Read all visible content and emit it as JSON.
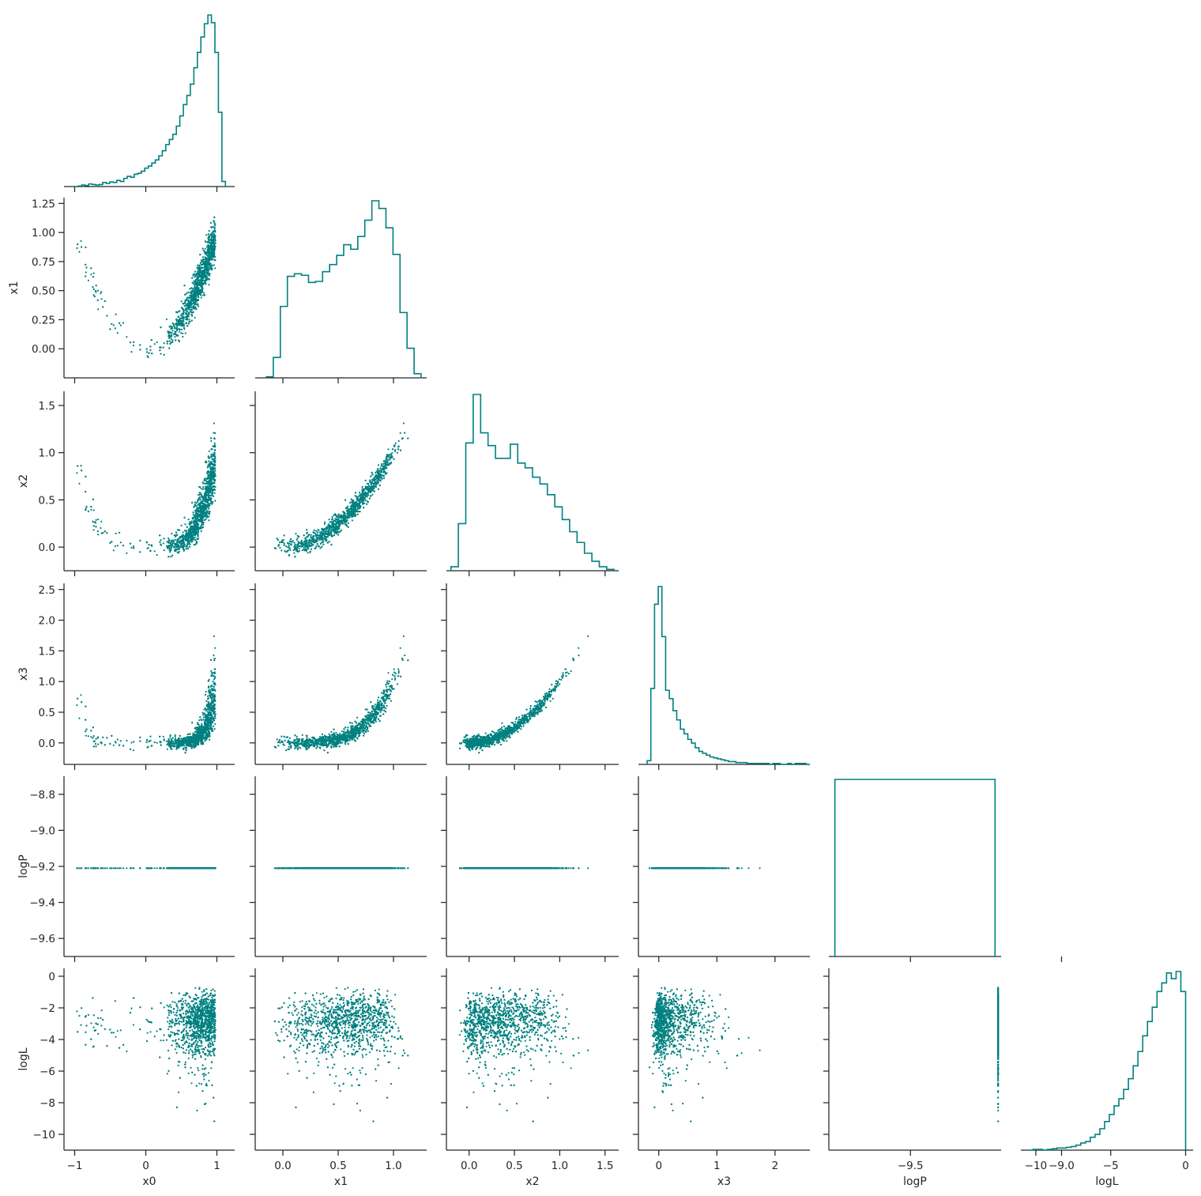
{
  "chart_data": {
    "type": "scatter",
    "title": "",
    "layout": "corner-pairplot",
    "variables": [
      "x0",
      "x1",
      "x2",
      "x3",
      "logP",
      "logL"
    ],
    "color": "#008080",
    "grid": false,
    "legend": "none",
    "ranges": {
      "x0": [
        -1.15,
        1.25
      ],
      "x1": [
        -0.25,
        1.3
      ],
      "x2": [
        -0.25,
        1.65
      ],
      "x3": [
        -0.35,
        2.6
      ],
      "logP": [
        -9.7,
        -8.7
      ],
      "logL": [
        -11.0,
        0.5
      ]
    },
    "histogram_range_logP": [
      -9.75,
      -9.22
    ],
    "ticks": {
      "x0": {
        "values": [
          -1,
          0,
          1
        ],
        "labels": [
          "−1",
          "0",
          "1"
        ]
      },
      "x1": {
        "values": [
          0.0,
          0.5,
          1.0
        ],
        "labels": [
          "0.0",
          "0.5",
          "1.0"
        ]
      },
      "x1_y": {
        "values": [
          0.0,
          0.25,
          0.5,
          0.75,
          1.0,
          1.25
        ],
        "labels": [
          "0.00",
          "0.25",
          "0.50",
          "0.75",
          "1.00",
          "1.25"
        ]
      },
      "x2": {
        "values": [
          0.0,
          0.5,
          1.0,
          1.5
        ],
        "labels": [
          "0.0",
          "0.5",
          "1.0",
          "1.5"
        ]
      },
      "x3": {
        "values": [
          0,
          1,
          2
        ],
        "labels": [
          "0",
          "1",
          "2"
        ]
      },
      "x3_y": {
        "values": [
          0.0,
          0.5,
          1.0,
          1.5,
          2.0,
          2.5
        ],
        "labels": [
          "0.0",
          "0.5",
          "1.0",
          "1.5",
          "2.0",
          "2.5"
        ]
      },
      "logP": {
        "values": [
          -9.5,
          -9.0
        ],
        "labels": [
          "−9.5",
          "−9.0"
        ]
      },
      "logP_y": {
        "values": [
          -9.6,
          -9.4,
          -9.2,
          -9.0,
          -8.8
        ],
        "labels": [
          "−9.6",
          "−9.4",
          "−9.2",
          "−9.0",
          "−8.8"
        ]
      },
      "logL": {
        "values": [
          -10,
          -5,
          0
        ],
        "labels": [
          "−10",
          "−5",
          "0"
        ]
      },
      "logL_y": {
        "values": [
          -10,
          -8,
          -6,
          -4,
          -2,
          0
        ],
        "labels": [
          "−10",
          "−8",
          "−6",
          "−4",
          "−2",
          "0"
        ]
      }
    },
    "histograms": {
      "x0": {
        "min": -1.0,
        "max": 1.12,
        "counts": [
          0,
          1,
          3,
          2,
          5,
          4,
          3,
          4,
          8,
          6,
          9,
          8,
          12,
          10,
          16,
          20,
          18,
          24,
          26,
          30,
          36,
          40,
          46,
          52,
          60,
          70,
          82,
          92,
          102,
          118,
          138,
          160,
          178,
          200,
          232,
          262,
          292,
          318,
          335,
          320,
          262,
          145,
          10
        ]
      },
      "x1": {
        "min": -0.15,
        "max": 1.25,
        "counts": [
          2,
          40,
          140,
          199,
          204,
          201,
          187,
          189,
          208,
          222,
          240,
          261,
          252,
          277,
          309,
          347,
          332,
          294,
          242,
          128,
          58,
          8
        ]
      },
      "x2": {
        "min": -0.2,
        "max": 1.6,
        "counts": [
          6,
          70,
          190,
          262,
          205,
          186,
          167,
          167,
          188,
          160,
          153,
          139,
          129,
          113,
          95,
          76,
          58,
          42,
          26,
          14,
          6,
          2
        ]
      },
      "x3": {
        "min": -0.2,
        "max": 2.6,
        "counts": [
          4,
          82,
          173,
          192,
          138,
          80,
          71,
          58,
          48,
          38,
          33,
          27,
          23,
          18,
          14,
          12,
          10,
          8,
          7,
          6,
          5,
          4,
          3,
          3,
          2,
          2,
          2,
          1,
          1,
          1,
          1,
          1,
          1,
          0,
          1,
          1,
          0,
          0,
          1,
          0,
          1,
          1,
          1,
          0
        ]
      },
      "logP": {
        "min": -9.75,
        "max": -9.22,
        "counts": [
          1
        ]
      },
      "logL": {
        "min": -10.5,
        "max": 0.0,
        "counts": [
          0,
          1,
          1,
          0,
          1,
          2,
          3,
          3,
          4,
          5,
          7,
          10,
          12,
          18,
          22,
          30,
          40,
          50,
          62,
          72,
          85,
          100,
          118,
          138,
          160,
          180,
          200,
          222,
          234,
          248,
          240,
          250,
          222
        ]
      }
    }
  }
}
